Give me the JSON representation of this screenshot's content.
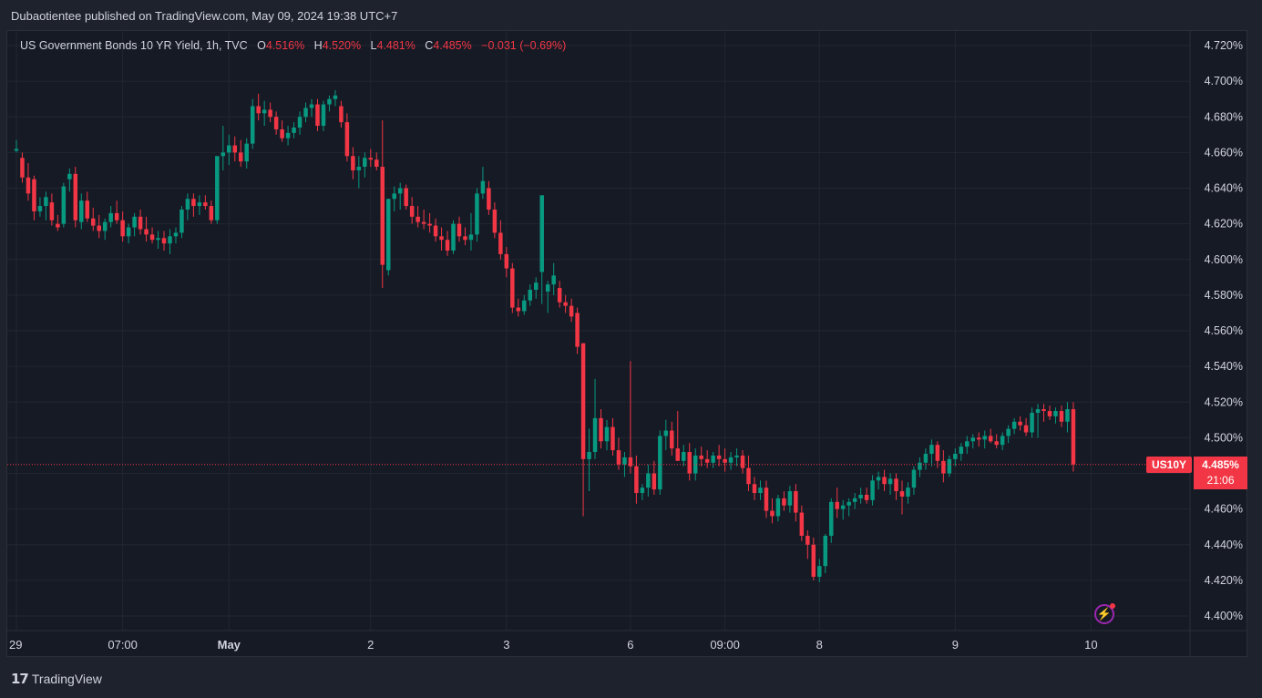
{
  "header": {
    "text": "Dubaotientee published on TradingView.com, May 09, 2024 19:38 UTC+7"
  },
  "legend": {
    "title": "US Government Bonds 10 YR Yield, 1h, TVC",
    "o_label": "O",
    "o_value": "4.516%",
    "h_label": "H",
    "h_value": "4.520%",
    "l_label": "L",
    "l_value": "4.481%",
    "c_label": "C",
    "c_value": "4.485%",
    "change": "−0.031 (−0.69%)"
  },
  "price_tag": {
    "symbol": "US10Y",
    "price": "4.485%",
    "countdown": "21:06",
    "color": "#f23645"
  },
  "footer": {
    "brand": "TradingView"
  },
  "colors": {
    "up": "#089981",
    "down": "#f23645",
    "grid": "#222631",
    "background": "#161a25"
  },
  "chart_data": {
    "type": "candlestick",
    "y_axis": {
      "min": 4.4,
      "max": 4.72,
      "ticks": [
        "4.720%",
        "4.700%",
        "4.680%",
        "4.660%",
        "4.640%",
        "4.620%",
        "4.600%",
        "4.580%",
        "4.560%",
        "4.540%",
        "4.520%",
        "4.500%",
        "4.480%",
        "4.460%",
        "4.440%",
        "4.420%",
        "4.400%"
      ],
      "tick_values": [
        4.72,
        4.7,
        4.68,
        4.66,
        4.64,
        4.62,
        4.6,
        4.58,
        4.56,
        4.54,
        4.52,
        4.5,
        4.48,
        4.46,
        4.44,
        4.42,
        4.4
      ]
    },
    "x_axis": {
      "ticks": [
        {
          "label": "29",
          "index": 0,
          "bold": false
        },
        {
          "label": "07:00",
          "index": 18,
          "bold": false
        },
        {
          "label": "May",
          "index": 36,
          "bold": true
        },
        {
          "label": "2",
          "index": 60,
          "bold": false
        },
        {
          "label": "3",
          "index": 83,
          "bold": false
        },
        {
          "label": "6",
          "index": 104,
          "bold": false
        },
        {
          "label": "09:00",
          "index": 120,
          "bold": false
        },
        {
          "label": "8",
          "index": 136,
          "bold": false
        },
        {
          "label": "9",
          "index": 159,
          "bold": false
        },
        {
          "label": "10",
          "index": 182,
          "bold": false
        }
      ]
    },
    "last_price": 4.485,
    "candles_ohlc": [
      [
        4.661,
        4.667,
        4.66,
        4.662
      ],
      [
        4.657,
        4.66,
        4.643,
        4.646
      ],
      [
        4.646,
        4.654,
        4.633,
        4.637
      ],
      [
        4.645,
        4.647,
        4.622,
        4.627
      ],
      [
        4.627,
        4.635,
        4.624,
        4.63
      ],
      [
        4.63,
        4.638,
        4.622,
        4.635
      ],
      [
        4.632,
        4.637,
        4.619,
        4.622
      ],
      [
        4.62,
        4.625,
        4.616,
        4.618
      ],
      [
        4.62,
        4.643,
        4.618,
        4.641
      ],
      [
        4.645,
        4.651,
        4.638,
        4.648
      ],
      [
        4.648,
        4.652,
        4.618,
        4.622
      ],
      [
        4.621,
        4.637,
        4.617,
        4.633
      ],
      [
        4.633,
        4.638,
        4.621,
        4.623
      ],
      [
        4.623,
        4.629,
        4.616,
        4.619
      ],
      [
        4.619,
        4.625,
        4.612,
        4.616
      ],
      [
        4.616,
        4.623,
        4.611,
        4.621
      ],
      [
        4.621,
        4.63,
        4.618,
        4.626
      ],
      [
        4.626,
        4.633,
        4.62,
        4.622
      ],
      [
        4.622,
        4.627,
        4.61,
        4.613
      ],
      [
        4.613,
        4.62,
        4.609,
        4.618
      ],
      [
        4.618,
        4.626,
        4.613,
        4.624
      ],
      [
        4.624,
        4.628,
        4.614,
        4.617
      ],
      [
        4.617,
        4.624,
        4.61,
        4.614
      ],
      [
        4.614,
        4.618,
        4.609,
        4.611
      ],
      [
        4.611,
        4.616,
        4.606,
        4.612
      ],
      [
        4.612,
        4.616,
        4.605,
        4.609
      ],
      [
        4.609,
        4.617,
        4.603,
        4.613
      ],
      [
        4.613,
        4.618,
        4.609,
        4.615
      ],
      [
        4.615,
        4.63,
        4.612,
        4.628
      ],
      [
        4.628,
        4.637,
        4.622,
        4.634
      ],
      [
        4.634,
        4.637,
        4.624,
        4.63
      ],
      [
        4.63,
        4.636,
        4.625,
        4.632
      ],
      [
        4.632,
        4.636,
        4.628,
        4.63
      ],
      [
        4.63,
        4.633,
        4.62,
        4.622
      ],
      [
        4.622,
        4.64,
        4.62,
        4.658
      ],
      [
        4.658,
        4.675,
        4.65,
        4.66
      ],
      [
        4.66,
        4.67,
        4.653,
        4.664
      ],
      [
        4.664,
        4.669,
        4.655,
        4.66
      ],
      [
        4.66,
        4.667,
        4.652,
        4.655
      ],
      [
        4.655,
        4.668,
        4.651,
        4.665
      ],
      [
        4.665,
        4.69,
        4.662,
        4.686
      ],
      [
        4.686,
        4.693,
        4.678,
        4.682
      ],
      [
        4.682,
        4.689,
        4.675,
        4.684
      ],
      [
        4.684,
        4.688,
        4.677,
        4.68
      ],
      [
        4.68,
        4.683,
        4.67,
        4.673
      ],
      [
        4.673,
        4.678,
        4.666,
        4.668
      ],
      [
        4.668,
        4.675,
        4.664,
        4.671
      ],
      [
        4.671,
        4.677,
        4.668,
        4.674
      ],
      [
        4.674,
        4.683,
        4.67,
        4.68
      ],
      [
        4.68,
        4.688,
        4.677,
        4.685
      ],
      [
        4.685,
        4.69,
        4.68,
        4.687
      ],
      [
        4.687,
        4.69,
        4.672,
        4.675
      ],
      [
        4.675,
        4.689,
        4.672,
        4.687
      ],
      [
        4.687,
        4.692,
        4.683,
        4.69
      ],
      [
        4.69,
        4.695,
        4.686,
        4.692
      ],
      [
        4.686,
        4.689,
        4.674,
        4.677
      ],
      [
        4.677,
        4.682,
        4.655,
        4.658
      ],
      [
        4.658,
        4.663,
        4.645,
        4.65
      ],
      [
        4.65,
        4.658,
        4.64,
        4.652
      ],
      [
        4.652,
        4.66,
        4.646,
        4.657
      ],
      [
        4.657,
        4.662,
        4.652,
        4.656
      ],
      [
        4.656,
        4.66,
        4.65,
        4.652
      ],
      [
        4.652,
        4.678,
        4.584,
        4.597
      ],
      [
        4.594,
        4.634,
        4.591,
        4.634
      ],
      [
        4.634,
        4.641,
        4.627,
        4.637
      ],
      [
        4.637,
        4.643,
        4.628,
        4.64
      ],
      [
        4.64,
        4.642,
        4.628,
        4.63
      ],
      [
        4.63,
        4.635,
        4.62,
        4.624
      ],
      [
        4.624,
        4.63,
        4.618,
        4.621
      ],
      [
        4.621,
        4.628,
        4.617,
        4.62
      ],
      [
        4.62,
        4.626,
        4.615,
        4.619
      ],
      [
        4.619,
        4.623,
        4.61,
        4.613
      ],
      [
        4.613,
        4.618,
        4.605,
        4.611
      ],
      [
        4.611,
        4.616,
        4.602,
        4.605
      ],
      [
        4.605,
        4.622,
        4.603,
        4.62
      ],
      [
        4.62,
        4.624,
        4.61,
        4.613
      ],
      [
        4.613,
        4.618,
        4.608,
        4.611
      ],
      [
        4.611,
        4.626,
        4.605,
        4.614
      ],
      [
        4.614,
        4.64,
        4.61,
        4.637
      ],
      [
        4.637,
        4.652,
        4.634,
        4.644
      ],
      [
        4.64,
        4.644,
        4.625,
        4.628
      ],
      [
        4.628,
        4.632,
        4.612,
        4.615
      ],
      [
        4.615,
        4.622,
        4.6,
        4.603
      ],
      [
        4.603,
        4.607,
        4.59,
        4.595
      ],
      [
        4.595,
        4.598,
        4.57,
        4.573
      ],
      [
        4.573,
        4.578,
        4.568,
        4.571
      ],
      [
        4.571,
        4.58,
        4.569,
        4.577
      ],
      [
        4.577,
        4.586,
        4.574,
        4.583
      ],
      [
        4.583,
        4.59,
        4.578,
        4.587
      ],
      [
        4.593,
        4.636,
        4.575,
        4.636
      ],
      [
        4.582,
        4.588,
        4.57,
        4.586
      ],
      [
        4.586,
        4.598,
        4.58,
        4.591
      ],
      [
        4.584,
        4.588,
        4.573,
        4.576
      ],
      [
        4.576,
        4.58,
        4.57,
        4.574
      ],
      [
        4.574,
        4.578,
        4.565,
        4.568
      ],
      [
        4.57,
        4.573,
        4.547,
        4.551
      ],
      [
        4.553,
        4.553,
        4.456,
        4.488
      ],
      [
        4.488,
        4.505,
        4.47,
        4.492
      ],
      [
        4.492,
        4.533,
        4.488,
        4.511
      ],
      [
        4.511,
        4.516,
        4.494,
        4.498
      ],
      [
        4.498,
        4.51,
        4.493,
        4.506
      ],
      [
        4.506,
        4.511,
        4.49,
        4.493
      ],
      [
        4.493,
        4.5,
        4.482,
        4.485
      ],
      [
        4.485,
        4.492,
        4.478,
        4.489
      ],
      [
        4.489,
        4.543,
        4.48,
        4.484
      ],
      [
        4.484,
        4.49,
        4.463,
        4.469
      ],
      [
        4.469,
        4.474,
        4.465,
        4.472
      ],
      [
        4.472,
        4.485,
        4.467,
        4.48
      ],
      [
        4.48,
        4.487,
        4.468,
        4.471
      ],
      [
        4.471,
        4.504,
        4.468,
        4.501
      ],
      [
        4.501,
        4.51,
        4.493,
        4.504
      ],
      [
        4.504,
        4.509,
        4.49,
        4.494
      ],
      [
        4.494,
        4.515,
        4.488,
        4.487
      ],
      [
        4.487,
        4.496,
        4.484,
        4.492
      ],
      [
        4.492,
        4.497,
        4.476,
        4.48
      ],
      [
        4.48,
        4.494,
        4.476,
        4.49
      ],
      [
        4.49,
        4.495,
        4.484,
        4.488
      ],
      [
        4.488,
        4.493,
        4.483,
        4.486
      ],
      [
        4.486,
        4.492,
        4.483,
        4.49
      ],
      [
        4.49,
        4.496,
        4.484,
        4.488
      ],
      [
        4.488,
        4.494,
        4.481,
        4.486
      ],
      [
        4.486,
        4.492,
        4.482,
        4.489
      ],
      [
        4.489,
        4.494,
        4.484,
        4.49
      ],
      [
        4.49,
        4.493,
        4.48,
        4.483
      ],
      [
        4.483,
        4.49,
        4.47,
        4.474
      ],
      [
        4.474,
        4.478,
        4.465,
        4.469
      ],
      [
        4.469,
        4.476,
        4.465,
        4.472
      ],
      [
        4.472,
        4.476,
        4.455,
        4.459
      ],
      [
        4.459,
        4.466,
        4.452,
        4.456
      ],
      [
        4.456,
        4.468,
        4.453,
        4.466
      ],
      [
        4.466,
        4.47,
        4.459,
        4.462
      ],
      [
        4.462,
        4.473,
        4.458,
        4.47
      ],
      [
        4.47,
        4.474,
        4.453,
        4.458
      ],
      [
        4.458,
        4.462,
        4.442,
        4.445
      ],
      [
        4.445,
        4.448,
        4.432,
        4.44
      ],
      [
        4.44,
        4.444,
        4.42,
        4.422
      ],
      [
        4.422,
        4.432,
        4.419,
        4.428
      ],
      [
        4.428,
        4.446,
        4.424,
        4.445
      ],
      [
        4.445,
        4.466,
        4.441,
        4.464
      ],
      [
        4.464,
        4.472,
        4.455,
        4.46
      ],
      [
        4.46,
        4.465,
        4.454,
        4.462
      ],
      [
        4.462,
        4.466,
        4.456,
        4.464
      ],
      [
        4.464,
        4.469,
        4.46,
        4.466
      ],
      [
        4.466,
        4.472,
        4.463,
        4.468
      ],
      [
        4.468,
        4.472,
        4.463,
        4.465
      ],
      [
        4.465,
        4.479,
        4.462,
        4.476
      ],
      [
        4.476,
        4.481,
        4.471,
        4.478
      ],
      [
        4.478,
        4.482,
        4.47,
        4.474
      ],
      [
        4.474,
        4.48,
        4.468,
        4.477
      ],
      [
        4.477,
        4.48,
        4.465,
        4.47
      ],
      [
        4.47,
        4.476,
        4.457,
        4.467
      ],
      [
        4.467,
        4.475,
        4.463,
        4.472
      ],
      [
        4.472,
        4.484,
        4.468,
        4.482
      ],
      [
        4.482,
        4.489,
        4.478,
        4.486
      ],
      [
        4.486,
        4.494,
        4.482,
        4.491
      ],
      [
        4.491,
        4.499,
        4.484,
        4.496
      ],
      [
        4.496,
        4.498,
        4.483,
        4.487
      ],
      [
        4.487,
        4.493,
        4.475,
        4.48
      ],
      [
        4.48,
        4.49,
        4.478,
        4.488
      ],
      [
        4.488,
        4.494,
        4.484,
        4.491
      ],
      [
        4.491,
        4.497,
        4.487,
        4.495
      ],
      [
        4.495,
        4.501,
        4.491,
        4.498
      ],
      [
        4.498,
        4.502,
        4.494,
        4.5
      ],
      [
        4.5,
        4.503,
        4.495,
        4.499
      ],
      [
        4.499,
        4.504,
        4.494,
        4.501
      ],
      [
        4.501,
        4.505,
        4.497,
        4.498
      ],
      [
        4.498,
        4.502,
        4.494,
        4.496
      ],
      [
        4.496,
        4.503,
        4.493,
        4.501
      ],
      [
        4.501,
        4.507,
        4.497,
        4.505
      ],
      [
        4.505,
        4.511,
        4.502,
        4.509
      ],
      [
        4.509,
        4.512,
        4.504,
        4.507
      ],
      [
        4.507,
        4.511,
        4.501,
        4.503
      ],
      [
        4.503,
        4.517,
        4.5,
        4.514
      ],
      [
        4.514,
        4.519,
        4.5,
        4.516
      ],
      [
        4.516,
        4.519,
        4.509,
        4.515
      ],
      [
        4.515,
        4.518,
        4.51,
        4.512
      ],
      [
        4.512,
        4.517,
        4.508,
        4.515
      ],
      [
        4.515,
        4.518,
        4.506,
        4.509
      ],
      [
        4.509,
        4.52,
        4.503,
        4.516
      ],
      [
        4.516,
        4.52,
        4.481,
        4.485
      ]
    ]
  }
}
